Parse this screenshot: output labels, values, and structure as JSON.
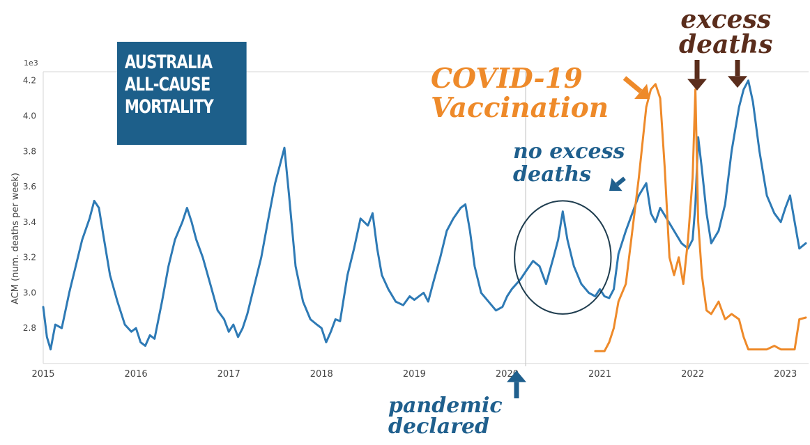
{
  "chart_data": {
    "type": "line",
    "title": "AUSTRALIA ALL-CAUSE MORTALITY",
    "title_lines": [
      "AUSTRALIA",
      "ALL-CAUSE",
      "MORTALITY"
    ],
    "ylabel": "ACM (num. deaths per week)",
    "y_scale_label": "1e3",
    "xlim": [
      2015.0,
      2023.25
    ],
    "ylim": [
      2.6,
      4.25
    ],
    "x_ticks": [
      "2015",
      "2016",
      "2017",
      "2018",
      "2019",
      "2020",
      "2021",
      "2022",
      "2023"
    ],
    "y_ticks": [
      "2.8",
      "3.0",
      "3.2",
      "3.4",
      "3.6",
      "3.8",
      "4.0",
      "4.2"
    ],
    "grid": false,
    "reference_lines": [
      2020.2
    ],
    "series": [
      {
        "color": "#2e7ab5",
        "x": [
          2015.0,
          2015.04,
          2015.08,
          2015.13,
          2015.2,
          2015.28,
          2015.35,
          2015.42,
          2015.5,
          2015.55,
          2015.6,
          2015.65,
          2015.72,
          2015.8,
          2015.88,
          2015.95,
          2016.0,
          2016.05,
          2016.1,
          2016.15,
          2016.2,
          2016.28,
          2016.35,
          2016.42,
          2016.5,
          2016.55,
          2016.6,
          2016.65,
          2016.72,
          2016.8,
          2016.88,
          2016.95,
          2017.0,
          2017.05,
          2017.1,
          2017.15,
          2017.2,
          2017.28,
          2017.35,
          2017.42,
          2017.5,
          2017.55,
          2017.6,
          2017.65,
          2017.72,
          2017.8,
          2017.88,
          2017.95,
          2018.0,
          2018.05,
          2018.1,
          2018.15,
          2018.2,
          2018.28,
          2018.35,
          2018.42,
          2018.5,
          2018.55,
          2018.6,
          2018.65,
          2018.72,
          2018.8,
          2018.88,
          2018.95,
          2019.0,
          2019.05,
          2019.1,
          2019.15,
          2019.2,
          2019.28,
          2019.35,
          2019.42,
          2019.5,
          2019.55,
          2019.6,
          2019.65,
          2019.72,
          2019.8,
          2019.88,
          2019.95,
          2020.0,
          2020.05,
          2020.1,
          2020.15,
          2020.2,
          2020.28,
          2020.35,
          2020.42,
          2020.5,
          2020.55,
          2020.6,
          2020.65,
          2020.72,
          2020.8,
          2020.88,
          2020.95,
          2021.0,
          2021.05,
          2021.1,
          2021.15,
          2021.2,
          2021.28,
          2021.35,
          2021.42,
          2021.5,
          2021.55,
          2021.6,
          2021.65,
          2021.72,
          2021.8,
          2021.88,
          2021.95,
          2022.0,
          2022.03,
          2022.06,
          2022.1,
          2022.15,
          2022.2,
          2022.28,
          2022.35,
          2022.42,
          2022.5,
          2022.55,
          2022.6,
          2022.65,
          2022.72,
          2022.8,
          2022.88,
          2022.95,
          2023.0,
          2023.05,
          2023.1,
          2023.15,
          2023.22
        ],
        "y": [
          2.92,
          2.75,
          2.68,
          2.82,
          2.8,
          3.0,
          3.15,
          3.3,
          3.42,
          3.52,
          3.48,
          3.32,
          3.1,
          2.95,
          2.82,
          2.78,
          2.8,
          2.72,
          2.7,
          2.76,
          2.74,
          2.95,
          3.15,
          3.3,
          3.4,
          3.48,
          3.4,
          3.3,
          3.2,
          3.05,
          2.9,
          2.85,
          2.78,
          2.82,
          2.75,
          2.8,
          2.88,
          3.05,
          3.2,
          3.4,
          3.62,
          3.72,
          3.82,
          3.55,
          3.15,
          2.95,
          2.85,
          2.82,
          2.8,
          2.72,
          2.78,
          2.85,
          2.84,
          3.1,
          3.25,
          3.42,
          3.38,
          3.45,
          3.25,
          3.1,
          3.02,
          2.95,
          2.93,
          2.98,
          2.96,
          2.98,
          3.0,
          2.95,
          3.05,
          3.2,
          3.35,
          3.42,
          3.48,
          3.5,
          3.35,
          3.15,
          3.0,
          2.95,
          2.9,
          2.92,
          2.98,
          3.02,
          3.05,
          3.08,
          3.12,
          3.18,
          3.15,
          3.05,
          3.2,
          3.3,
          3.46,
          3.3,
          3.15,
          3.05,
          3.0,
          2.98,
          3.02,
          2.98,
          2.97,
          3.02,
          3.22,
          3.35,
          3.45,
          3.55,
          3.62,
          3.45,
          3.4,
          3.48,
          3.42,
          3.35,
          3.28,
          3.25,
          3.3,
          3.5,
          3.88,
          3.7,
          3.45,
          3.28,
          3.35,
          3.5,
          3.8,
          4.05,
          4.15,
          4.2,
          4.08,
          3.8,
          3.55,
          3.45,
          3.4,
          3.48,
          3.55,
          3.4,
          3.25,
          3.28
        ]
      },
      {
        "color": "#ee8a2a",
        "x": [
          2020.95,
          2021.0,
          2021.05,
          2021.1,
          2021.15,
          2021.2,
          2021.28,
          2021.35,
          2021.42,
          2021.5,
          2021.55,
          2021.6,
          2021.65,
          2021.7,
          2021.75,
          2021.8,
          2021.85,
          2021.9,
          2021.95,
          2022.0,
          2022.03,
          2022.06,
          2022.1,
          2022.15,
          2022.2,
          2022.28,
          2022.35,
          2022.42,
          2022.5,
          2022.55,
          2022.6,
          2022.65,
          2022.7,
          2022.75,
          2022.8,
          2022.88,
          2022.95,
          2023.0,
          2023.05,
          2023.1,
          2023.15,
          2023.22
        ],
        "y": [
          2.67,
          2.67,
          2.67,
          2.72,
          2.8,
          2.95,
          3.05,
          3.35,
          3.65,
          4.05,
          4.15,
          4.18,
          4.1,
          3.7,
          3.2,
          3.1,
          3.2,
          3.05,
          3.3,
          3.65,
          4.15,
          3.4,
          3.1,
          2.9,
          2.88,
          2.95,
          2.85,
          2.88,
          2.85,
          2.75,
          2.68,
          2.68,
          2.68,
          2.68,
          2.68,
          2.7,
          2.68,
          2.68,
          2.68,
          2.68,
          2.85,
          2.86
        ]
      }
    ],
    "annotations": {
      "vaccination": [
        "COVID-19",
        "Vaccination"
      ],
      "excess": [
        "excess",
        "deaths"
      ],
      "no_excess": [
        "no excess",
        "deaths"
      ],
      "pandemic": [
        "pandemic",
        "declared"
      ]
    },
    "annotation_colors": {
      "vaccination": "#ee8a2a",
      "excess": "#5a2d1c",
      "no_excess": "#1f5f8d",
      "pandemic": "#1f5f8d"
    },
    "circle_highlight": {
      "x_center": 2020.6,
      "y_center": 3.2,
      "x_radius": 0.52,
      "y_radius": 0.32
    }
  }
}
